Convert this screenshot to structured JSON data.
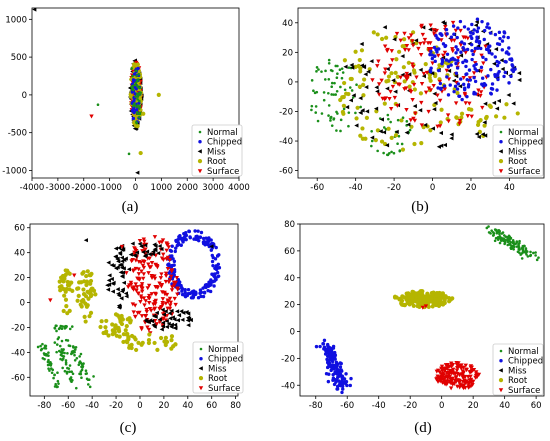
{
  "chart_data": [
    {
      "panel": "(a)",
      "type": "scatter",
      "xlim": [
        -4000,
        4000
      ],
      "ylim": [
        -1100,
        1150
      ],
      "xticks": [
        -4000,
        -3000,
        -2000,
        -1000,
        0,
        1000,
        2000,
        3000,
        4000
      ],
      "yticks": [
        -1000,
        -500,
        0,
        500,
        1000
      ],
      "legend_position": "lower-right",
      "grid": false,
      "clusters": [
        {
          "series": 2,
          "shape": "ellipse",
          "cx": 20,
          "cy": 0,
          "rx": 230,
          "ry": 460,
          "n": 140,
          "seed": 11
        },
        {
          "series": 4,
          "shape": "ellipse",
          "cx": 20,
          "cy": 20,
          "rx": 200,
          "ry": 420,
          "n": 130,
          "seed": 12
        },
        {
          "series": 3,
          "shape": "ellipse",
          "cx": 20,
          "cy": 0,
          "rx": 210,
          "ry": 440,
          "n": 90,
          "seed": 13
        },
        {
          "series": 1,
          "shape": "ellipse",
          "cx": 20,
          "cy": 0,
          "rx": 200,
          "ry": 420,
          "n": 40,
          "seed": 14
        },
        {
          "series": 0,
          "shape": "ellipse",
          "cx": 20,
          "cy": 0,
          "rx": 200,
          "ry": 400,
          "n": 40,
          "seed": 15
        }
      ],
      "points": [
        [
          -3900,
          1130,
          2
        ],
        [
          -1450,
          -130,
          0
        ],
        [
          -1700,
          -280,
          4
        ],
        [
          900,
          0,
          3
        ],
        [
          -250,
          -780,
          0
        ],
        [
          200,
          -770,
          3
        ],
        [
          80,
          -1030,
          2
        ],
        [
          200,
          30,
          0
        ],
        [
          -150,
          350,
          0
        ],
        [
          300,
          -250,
          3
        ]
      ]
    },
    {
      "panel": "(b)",
      "type": "scatter",
      "xlim": [
        -70,
        58
      ],
      "ylim": [
        -65,
        50
      ],
      "xticks": [
        -60,
        -40,
        -20,
        0,
        20,
        40
      ],
      "yticks": [
        -60,
        -40,
        -20,
        0,
        20,
        40
      ],
      "legend_position": "lower-right",
      "grid": false,
      "clusters": [
        {
          "series": 0,
          "shape": "ellipse",
          "cx": -50,
          "cy": -10,
          "rx": 14,
          "ry": 30,
          "n": 70,
          "seed": 21
        },
        {
          "series": 0,
          "shape": "ellipse",
          "cx": -22,
          "cy": -35,
          "rx": 12,
          "ry": 15,
          "n": 30,
          "seed": 22
        },
        {
          "series": 3,
          "shape": "ellipse",
          "cx": -18,
          "cy": -5,
          "rx": 32,
          "ry": 42,
          "n": 110,
          "seed": 23
        },
        {
          "series": 3,
          "shape": "ellipse",
          "cx": 30,
          "cy": -25,
          "rx": 18,
          "ry": 12,
          "n": 25,
          "seed": 24
        },
        {
          "series": 2,
          "shape": "ellipse",
          "cx": -2,
          "cy": 0,
          "rx": 48,
          "ry": 48,
          "n": 110,
          "seed": 25
        },
        {
          "series": 4,
          "shape": "ellipse",
          "cx": 0,
          "cy": 5,
          "rx": 32,
          "ry": 38,
          "n": 150,
          "seed": 26
        },
        {
          "series": 1,
          "shape": "ellipse",
          "cx": 20,
          "cy": 15,
          "rx": 24,
          "ry": 28,
          "n": 190,
          "seed": 27
        }
      ],
      "points": []
    },
    {
      "panel": "(c)",
      "type": "scatter",
      "xlim": [
        -92,
        82
      ],
      "ylim": [
        -75,
        63
      ],
      "xticks": [
        -80,
        -60,
        -40,
        -20,
        0,
        20,
        40,
        60,
        80
      ],
      "yticks": [
        -60,
        -40,
        -20,
        0,
        20,
        40,
        60
      ],
      "legend_position": "lower-right",
      "grid": false,
      "clusters": [
        {
          "series": 1,
          "shape": "ring",
          "cx": 45,
          "cy": 30,
          "rx": 22,
          "ry": 28,
          "n": 200,
          "seed": 31
        },
        {
          "series": 4,
          "shape": "ellipse",
          "cx": 10,
          "cy": 15,
          "rx": 22,
          "ry": 40,
          "n": 200,
          "seed": 32
        },
        {
          "series": 2,
          "shape": "ellipse",
          "cx": -18,
          "cy": 20,
          "rx": 10,
          "ry": 25,
          "n": 50,
          "seed": 33
        },
        {
          "series": 2,
          "shape": "ellipse",
          "cx": 25,
          "cy": -14,
          "rx": 20,
          "ry": 9,
          "n": 45,
          "seed": 34
        },
        {
          "series": 2,
          "shape": "ellipse",
          "cx": 0,
          "cy": 43,
          "rx": 20,
          "ry": 6,
          "n": 25,
          "seed": 35
        },
        {
          "series": 3,
          "shape": "ellipse",
          "cx": -45,
          "cy": 5,
          "rx": 8,
          "ry": 22,
          "n": 45,
          "seed": 36
        },
        {
          "series": 3,
          "shape": "ellipse",
          "cx": -62,
          "cy": 8,
          "rx": 6,
          "ry": 18,
          "n": 35,
          "seed": 37
        },
        {
          "series": 3,
          "shape": "ellipse",
          "cx": -20,
          "cy": -18,
          "rx": 14,
          "ry": 10,
          "n": 40,
          "seed": 38
        },
        {
          "series": 3,
          "shape": "ellipse",
          "cx": 8,
          "cy": -32,
          "rx": 28,
          "ry": 7,
          "n": 35,
          "seed": 39
        },
        {
          "series": 0,
          "shape": "band",
          "x1": -82,
          "y1": -32,
          "x2": -68,
          "y2": -70,
          "w": 3,
          "n": 45,
          "seed": 41
        },
        {
          "series": 0,
          "shape": "band",
          "x1": -70,
          "y1": -28,
          "x2": -55,
          "y2": -66,
          "w": 3,
          "n": 45,
          "seed": 42
        },
        {
          "series": 0,
          "shape": "band",
          "x1": -60,
          "y1": -30,
          "x2": -42,
          "y2": -65,
          "w": 3,
          "n": 45,
          "seed": 43
        },
        {
          "series": 0,
          "shape": "band",
          "x1": -73,
          "y1": -20,
          "x2": -57,
          "y2": -20,
          "w": 2,
          "n": 18,
          "seed": 44
        }
      ],
      "points": [
        [
          -75,
          2,
          4
        ],
        [
          -45,
          50,
          2
        ],
        [
          -55,
          22,
          4
        ],
        [
          60,
          45,
          2
        ],
        [
          -15,
          45,
          4
        ]
      ]
    },
    {
      "panel": "(d)",
      "type": "scatter",
      "xlim": [
        -90,
        65
      ],
      "ylim": [
        -48,
        80
      ],
      "xticks": [
        -80,
        -60,
        -40,
        -20,
        0,
        20,
        40,
        60
      ],
      "yticks": [
        -40,
        -20,
        0,
        20,
        40,
        60,
        80
      ],
      "legend_position": "center-right",
      "grid": false,
      "clusters": [
        {
          "series": 0,
          "shape": "band",
          "x1": 30,
          "y1": 76,
          "x2": 58,
          "y2": 56,
          "w": 3,
          "n": 120,
          "seed": 51
        },
        {
          "series": 3,
          "shape": "ellipse",
          "cx": -12,
          "cy": 24,
          "rx": 19,
          "ry": 6,
          "n": 150,
          "seed": 52
        },
        {
          "series": 1,
          "shape": "band",
          "x1": -75,
          "y1": -8,
          "x2": -62,
          "y2": -43,
          "w": 4,
          "n": 150,
          "seed": 53
        },
        {
          "series": 4,
          "shape": "ellipse",
          "cx": 10,
          "cy": -33,
          "rx": 14,
          "ry": 10,
          "n": 160,
          "seed": 54
        }
      ],
      "points": [
        [
          -12,
          18,
          4
        ],
        [
          -10,
          19,
          4
        ]
      ]
    }
  ],
  "series": [
    {
      "name": "Normal",
      "color": "#1a8f1a",
      "marker": "dot"
    },
    {
      "name": "Chipped",
      "color": "#1010e0",
      "marker": "circle"
    },
    {
      "name": "Miss",
      "color": "#000000",
      "marker": "triangle-left"
    },
    {
      "name": "Root",
      "color": "#b5b500",
      "marker": "circle-big"
    },
    {
      "name": "Surface",
      "color": "#e00000",
      "marker": "triangle-down"
    }
  ]
}
